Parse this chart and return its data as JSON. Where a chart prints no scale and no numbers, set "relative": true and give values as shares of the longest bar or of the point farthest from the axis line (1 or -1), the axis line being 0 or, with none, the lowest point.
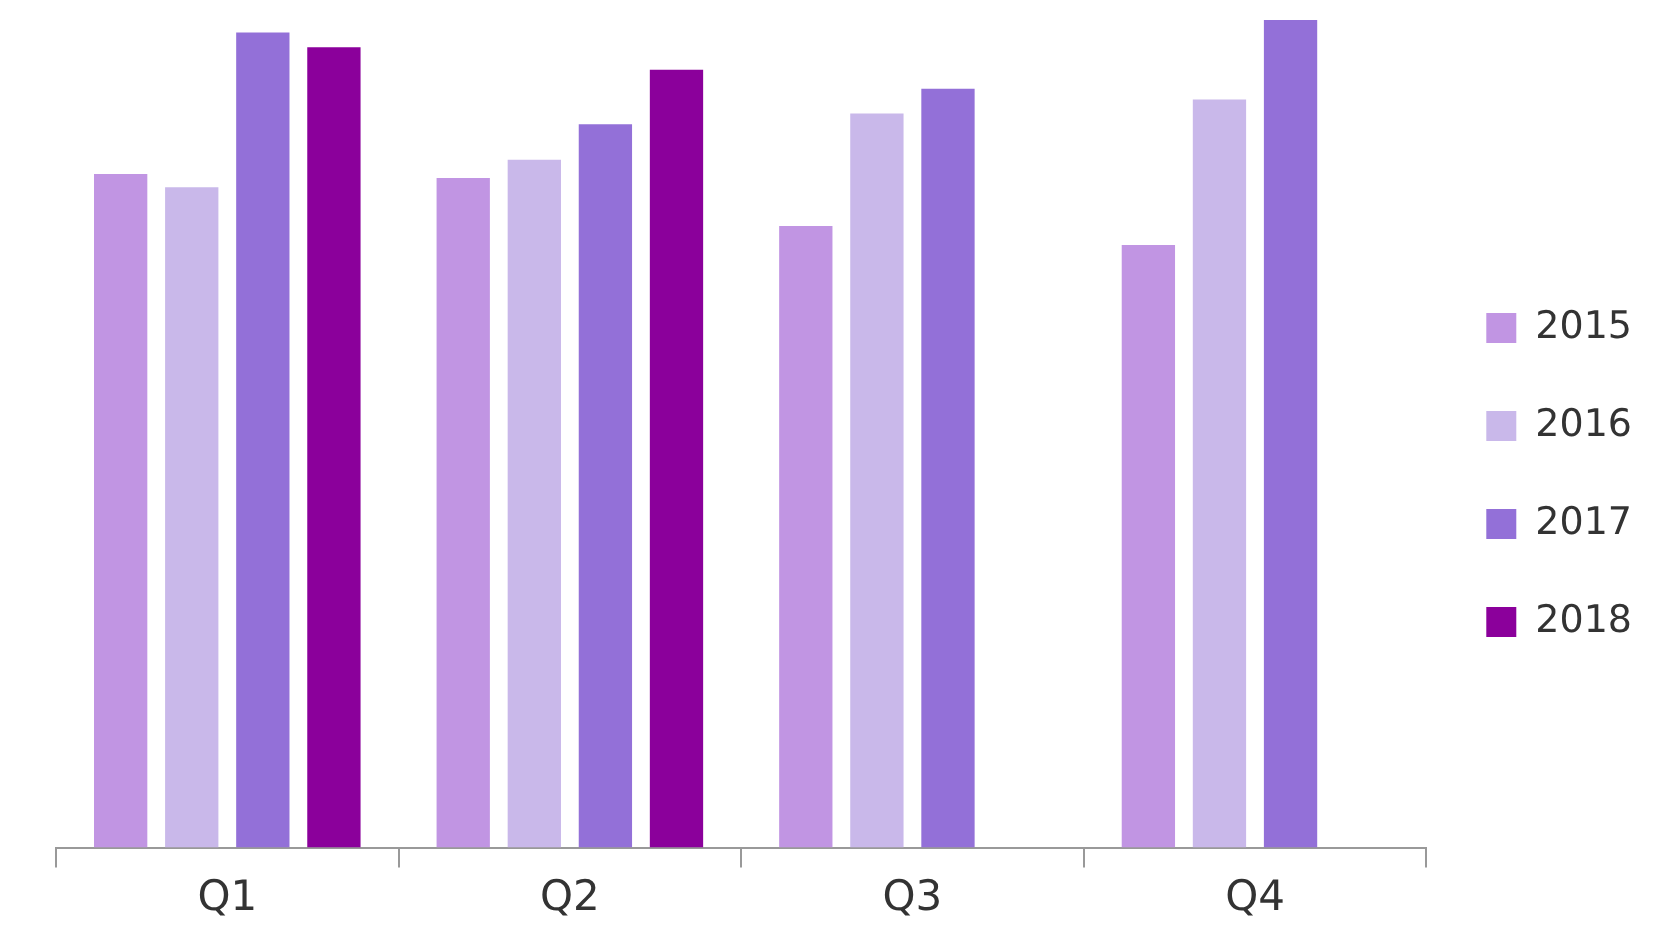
{
  "chart_data": {
    "type": "bar",
    "relative": true,
    "categories": [
      "Q1",
      "Q2",
      "Q3",
      "Q4"
    ],
    "legend": "right",
    "grid": false,
    "series": [
      {
        "name": "2015",
        "color": "#c195e3",
        "values": [
          0.814,
          0.809,
          0.751,
          0.728
        ]
      },
      {
        "name": "2016",
        "color": "#c9b8ea",
        "values": [
          0.798,
          0.831,
          0.887,
          0.904
        ]
      },
      {
        "name": "2017",
        "color": "#9370d8",
        "values": [
          0.985,
          0.874,
          0.917,
          1
        ]
      },
      {
        "name": "2018",
        "color": "#8b009b",
        "values": [
          0.967,
          0.94,
          null,
          null
        ]
      }
    ]
  }
}
